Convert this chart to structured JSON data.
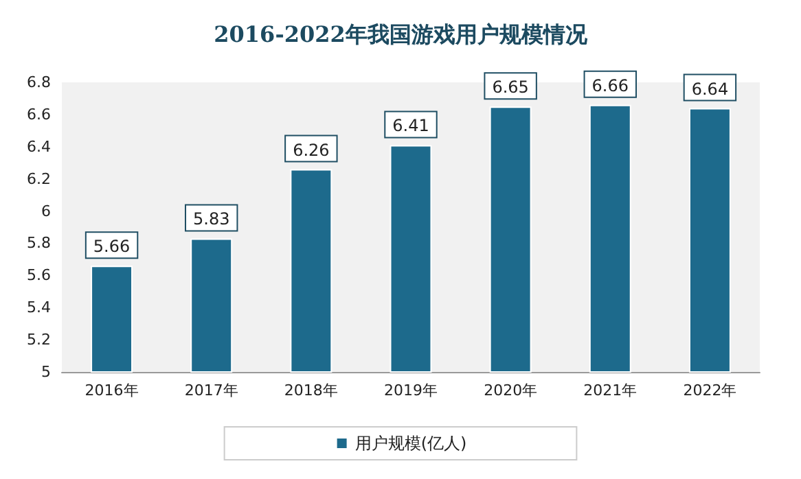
{
  "chart_data": {
    "type": "bar",
    "title": "2016-2022年我国游戏用户规模情况",
    "categories": [
      "2016年",
      "2017年",
      "2018年",
      "2019年",
      "2020年",
      "2021年",
      "2022年"
    ],
    "series": [
      {
        "name": "用户规模(亿人)",
        "color": "#1d6a8c",
        "values": [
          5.66,
          5.83,
          6.26,
          6.41,
          6.65,
          6.66,
          6.64
        ]
      }
    ],
    "ylim": [
      5,
      6.8
    ],
    "yticks": [
      5,
      5.2,
      5.4,
      5.6,
      5.8,
      6,
      6.2,
      6.4,
      6.6,
      6.8
    ],
    "grid": false,
    "legend": "bottom",
    "data_labels": true
  }
}
